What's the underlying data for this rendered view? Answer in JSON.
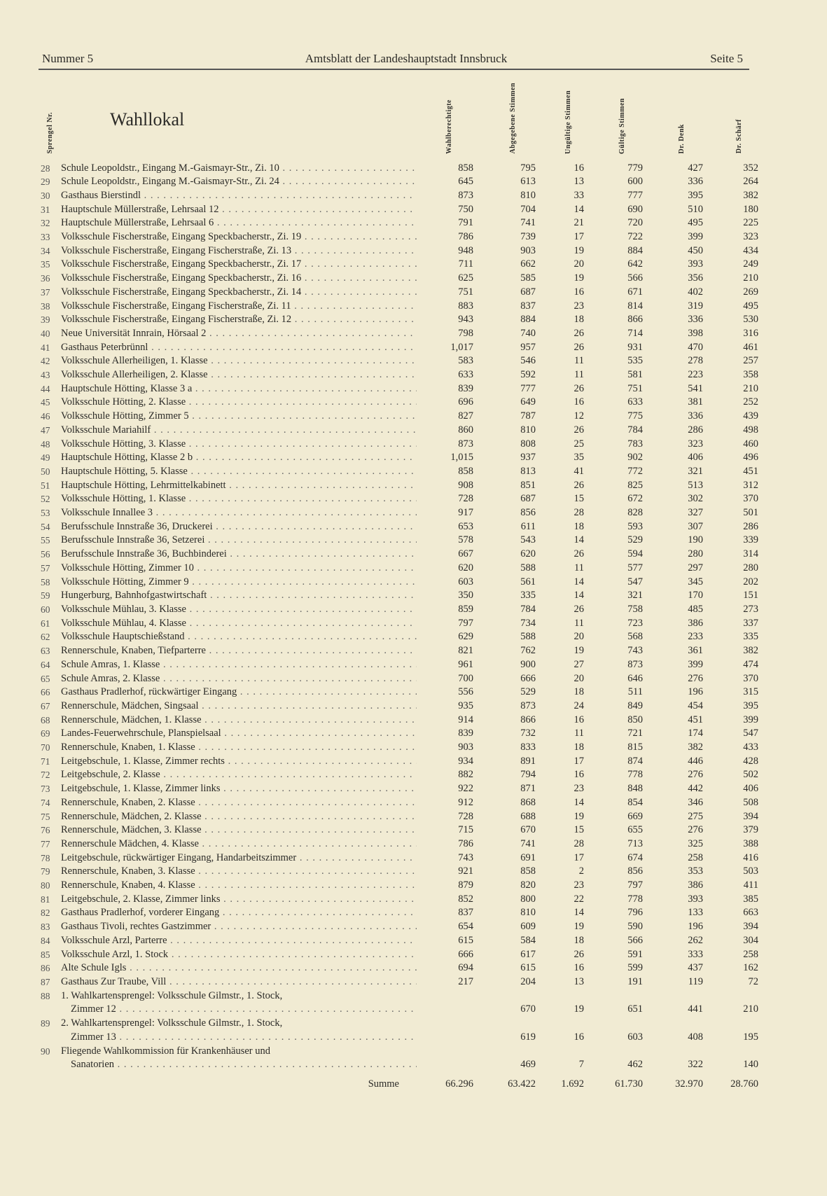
{
  "header": {
    "left": "Nummer 5",
    "center": "Amtsblatt der Landeshauptstadt Innsbruck",
    "right": "Seite 5"
  },
  "columns": {
    "nr": "Sprengel Nr.",
    "name": "Wahllokal",
    "berechtigte": "Wahlberechtigte",
    "abgegeben": "Abgegebene Stimmen",
    "ungueltig": "Ungültige Stimmen",
    "gueltig": "Gültige Stimmen",
    "denk": "Dr. Denk",
    "schaerf": "Dr. Schärf"
  },
  "rows": [
    [
      "28",
      "Schule Leopoldstr., Eingang M.-Gaismayr-Str., Zi. 10",
      "",
      "858",
      "795",
      "16",
      "779",
      "427",
      "352"
    ],
    [
      "29",
      "Schule Leopoldstr., Eingang M.-Gaismayr-Str., Zi. 24",
      "",
      "645",
      "613",
      "13",
      "600",
      "336",
      "264"
    ],
    [
      "30",
      "Gasthaus Bierstindl",
      "",
      "873",
      "810",
      "33",
      "777",
      "395",
      "382"
    ],
    [
      "31",
      "Hauptschule Müllerstraße, Lehrsaal 12",
      "",
      "750",
      "704",
      "14",
      "690",
      "510",
      "180"
    ],
    [
      "32",
      "Hauptschule Müllerstraße, Lehrsaal 6",
      "",
      "791",
      "741",
      "21",
      "720",
      "495",
      "225"
    ],
    [
      "33",
      "Volksschule Fischerstraße, Eingang Speckbacherstr., Zi. 19",
      "",
      "786",
      "739",
      "17",
      "722",
      "399",
      "323"
    ],
    [
      "34",
      "Volksschule Fischerstraße, Eingang Fischerstraße, Zi. 13",
      "",
      "948",
      "903",
      "19",
      "884",
      "450",
      "434"
    ],
    [
      "35",
      "Volksschule Fischerstraße, Eingang Speckbacherstr., Zi. 17",
      "",
      "711",
      "662",
      "20",
      "642",
      "393",
      "249"
    ],
    [
      "36",
      "Volksschule Fischerstraße, Eingang Speckbacherstr., Zi. 16",
      "",
      "625",
      "585",
      "19",
      "566",
      "356",
      "210"
    ],
    [
      "37",
      "Volksschule Fischerstraße, Eingang Speckbacherstr., Zi. 14",
      "",
      "751",
      "687",
      "16",
      "671",
      "402",
      "269"
    ],
    [
      "38",
      "Volksschule Fischerstraße, Eingang Fischerstraße, Zi. 11",
      "",
      "883",
      "837",
      "23",
      "814",
      "319",
      "495"
    ],
    [
      "39",
      "Volksschule Fischerstraße, Eingang Fischerstraße, Zi. 12",
      "",
      "943",
      "884",
      "18",
      "866",
      "336",
      "530"
    ],
    [
      "40",
      "Neue Universität Innrain, Hörsaal 2",
      "",
      "798",
      "740",
      "26",
      "714",
      "398",
      "316"
    ],
    [
      "41",
      "Gasthaus Peterbrünnl",
      "",
      "1,017",
      "957",
      "26",
      "931",
      "470",
      "461"
    ],
    [
      "42",
      "Volksschule Allerheiligen, 1. Klasse",
      "",
      "583",
      "546",
      "11",
      "535",
      "278",
      "257"
    ],
    [
      "43",
      "Volksschule Allerheiligen, 2. Klasse",
      "",
      "633",
      "592",
      "11",
      "581",
      "223",
      "358"
    ],
    [
      "44",
      "Hauptschule Hötting, Klasse 3 a",
      "",
      "839",
      "777",
      "26",
      "751",
      "541",
      "210"
    ],
    [
      "45",
      "Volksschule Hötting, 2. Klasse",
      "",
      "696",
      "649",
      "16",
      "633",
      "381",
      "252"
    ],
    [
      "46",
      "Volksschule Hötting, Zimmer 5",
      "",
      "827",
      "787",
      "12",
      "775",
      "336",
      "439"
    ],
    [
      "47",
      "Volksschule Mariahilf",
      "",
      "860",
      "810",
      "26",
      "784",
      "286",
      "498"
    ],
    [
      "48",
      "Volksschule Hötting, 3. Klasse",
      "",
      "873",
      "808",
      "25",
      "783",
      "323",
      "460"
    ],
    [
      "49",
      "Hauptschule Hötting, Klasse 2 b",
      "",
      "1,015",
      "937",
      "35",
      "902",
      "406",
      "496"
    ],
    [
      "50",
      "Hauptschule Hötting, 5. Klasse",
      "",
      "858",
      "813",
      "41",
      "772",
      "321",
      "451"
    ],
    [
      "51",
      "Hauptschule Hötting, Lehrmittelkabinett",
      "",
      "908",
      "851",
      "26",
      "825",
      "513",
      "312"
    ],
    [
      "52",
      "Volksschule Hötting, 1. Klasse",
      "",
      "728",
      "687",
      "15",
      "672",
      "302",
      "370"
    ],
    [
      "53",
      "Volksschule Innallee 3",
      "",
      "917",
      "856",
      "28",
      "828",
      "327",
      "501"
    ],
    [
      "54",
      "Berufsschule Innstraße 36, Druckerei",
      "",
      "653",
      "611",
      "18",
      "593",
      "307",
      "286"
    ],
    [
      "55",
      "Berufsschule Innstraße 36, Setzerei",
      "",
      "578",
      "543",
      "14",
      "529",
      "190",
      "339"
    ],
    [
      "56",
      "Berufsschule Innstraße 36, Buchbinderei",
      "",
      "667",
      "620",
      "26",
      "594",
      "280",
      "314"
    ],
    [
      "57",
      "Volksschule Hötting, Zimmer 10",
      "",
      "620",
      "588",
      "11",
      "577",
      "297",
      "280"
    ],
    [
      "58",
      "Volksschule Hötting, Zimmer 9",
      "",
      "603",
      "561",
      "14",
      "547",
      "345",
      "202"
    ],
    [
      "59",
      "Hungerburg, Bahnhofgastwirtschaft",
      "",
      "350",
      "335",
      "14",
      "321",
      "170",
      "151"
    ],
    [
      "60",
      "Volksschule Mühlau, 3. Klasse",
      "",
      "859",
      "784",
      "26",
      "758",
      "485",
      "273"
    ],
    [
      "61",
      "Volksschule Mühlau, 4. Klasse",
      "",
      "797",
      "734",
      "11",
      "723",
      "386",
      "337"
    ],
    [
      "62",
      "Volksschule Hauptschießstand",
      "",
      "629",
      "588",
      "20",
      "568",
      "233",
      "335"
    ],
    [
      "63",
      "Rennerschule, Knaben, Tiefparterre",
      "",
      "821",
      "762",
      "19",
      "743",
      "361",
      "382"
    ],
    [
      "64",
      "Schule Amras, 1. Klasse",
      "",
      "961",
      "900",
      "27",
      "873",
      "399",
      "474"
    ],
    [
      "65",
      "Schule Amras, 2. Klasse",
      "",
      "700",
      "666",
      "20",
      "646",
      "276",
      "370"
    ],
    [
      "66",
      "Gasthaus Pradlerhof, rückwärtiger Eingang",
      "",
      "556",
      "529",
      "18",
      "511",
      "196",
      "315"
    ],
    [
      "67",
      "Rennerschule, Mädchen, Singsaal",
      "",
      "935",
      "873",
      "24",
      "849",
      "454",
      "395"
    ],
    [
      "68",
      "Rennerschule, Mädchen, 1. Klasse",
      "",
      "914",
      "866",
      "16",
      "850",
      "451",
      "399"
    ],
    [
      "69",
      "Landes-Feuerwehrschule, Planspielsaal",
      "",
      "839",
      "732",
      "11",
      "721",
      "174",
      "547"
    ],
    [
      "70",
      "Rennerschule, Knaben, 1. Klasse",
      "",
      "903",
      "833",
      "18",
      "815",
      "382",
      "433"
    ],
    [
      "71",
      "Leitgebschule, 1. Klasse, Zimmer rechts",
      "",
      "934",
      "891",
      "17",
      "874",
      "446",
      "428"
    ],
    [
      "72",
      "Leitgebschule, 2. Klasse",
      "",
      "882",
      "794",
      "16",
      "778",
      "276",
      "502"
    ],
    [
      "73",
      "Leitgebschule, 1. Klasse, Zimmer links",
      "",
      "922",
      "871",
      "23",
      "848",
      "442",
      "406"
    ],
    [
      "74",
      "Rennerschule, Knaben, 2. Klasse",
      "",
      "912",
      "868",
      "14",
      "854",
      "346",
      "508"
    ],
    [
      "75",
      "Rennerschule, Mädchen, 2. Klasse",
      "",
      "728",
      "688",
      "19",
      "669",
      "275",
      "394"
    ],
    [
      "76",
      "Rennerschule, Mädchen, 3. Klasse",
      "",
      "715",
      "670",
      "15",
      "655",
      "276",
      "379"
    ],
    [
      "77",
      "Rennerschule Mädchen, 4. Klasse",
      "",
      "786",
      "741",
      "28",
      "713",
      "325",
      "388"
    ],
    [
      "78",
      "Leitgebschule, rückwärtiger Eingang, Handarbeitszimmer",
      "",
      "743",
      "691",
      "17",
      "674",
      "258",
      "416"
    ],
    [
      "79",
      "Rennerschule, Knaben, 3. Klasse",
      "",
      "921",
      "858",
      "2",
      "856",
      "353",
      "503"
    ],
    [
      "80",
      "Rennerschule, Knaben, 4. Klasse",
      "",
      "879",
      "820",
      "23",
      "797",
      "386",
      "411"
    ],
    [
      "81",
      "Leitgebschule, 2. Klasse, Zimmer links",
      "",
      "852",
      "800",
      "22",
      "778",
      "393",
      "385"
    ],
    [
      "82",
      "Gasthaus Pradlerhof, vorderer Eingang",
      "",
      "837",
      "810",
      "14",
      "796",
      "133",
      "663"
    ],
    [
      "83",
      "Gasthaus Tivoli, rechtes Gastzimmer",
      "",
      "654",
      "609",
      "19",
      "590",
      "196",
      "394"
    ],
    [
      "84",
      "Volksschule Arzl, Parterre",
      "",
      "615",
      "584",
      "18",
      "566",
      "262",
      "304"
    ],
    [
      "85",
      "Volksschule Arzl, 1. Stock",
      "",
      "666",
      "617",
      "26",
      "591",
      "333",
      "258"
    ],
    [
      "86",
      "Alte Schule Igls",
      "",
      "694",
      "615",
      "16",
      "599",
      "437",
      "162"
    ],
    [
      "87",
      "Gasthaus Zur Traube, Vill",
      "",
      "217",
      "204",
      "13",
      "191",
      "119",
      "72"
    ],
    [
      "88",
      "1. Wahlkartensprengel: Volksschule Gilmstr., 1. Stock,",
      "Zimmer 12",
      "",
      "670",
      "19",
      "651",
      "441",
      "210"
    ],
    [
      "89",
      "2. Wahlkartensprengel: Volksschule Gilmstr., 1. Stock,",
      "Zimmer 13",
      "",
      "619",
      "16",
      "603",
      "408",
      "195"
    ],
    [
      "90",
      "Fliegende Wahlkommission für Krankenhäuser und",
      "Sanatorien",
      "",
      "469",
      "7",
      "462",
      "322",
      "140"
    ]
  ],
  "summe": {
    "label": "Summe",
    "values": [
      "66.296",
      "63.422",
      "1.692",
      "61.730",
      "32.970",
      "28.760"
    ]
  }
}
